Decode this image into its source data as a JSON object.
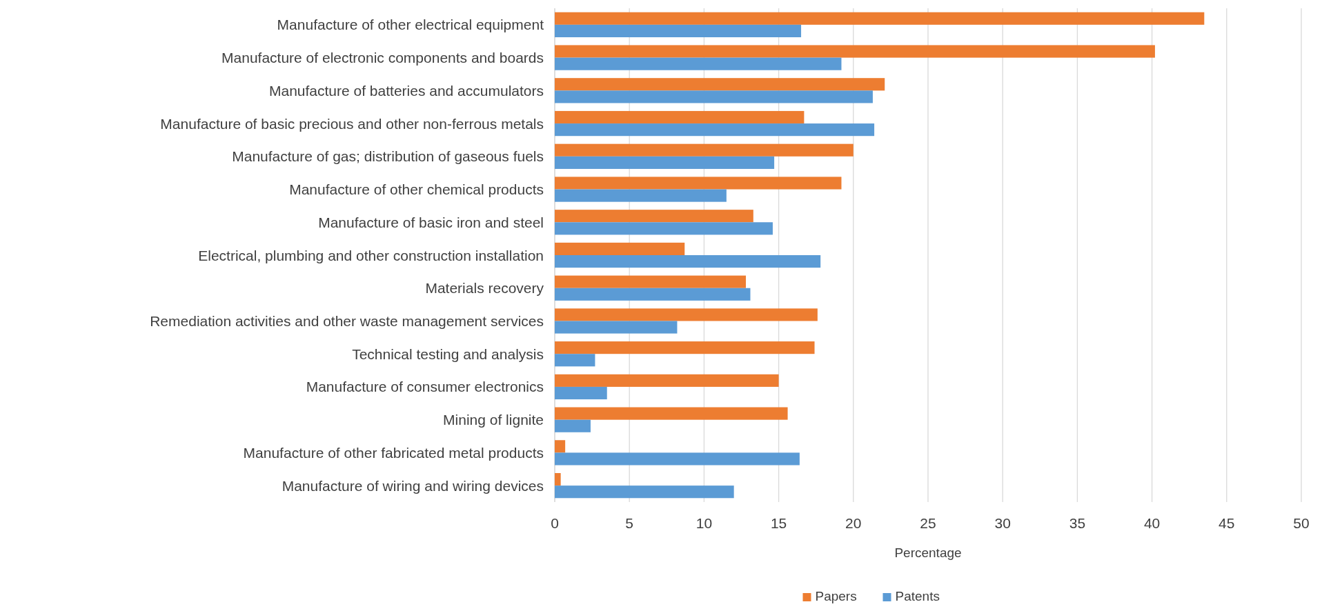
{
  "chart_data": {
    "type": "bar",
    "orientation": "horizontal",
    "xlabel": "Percentage",
    "categories": [
      "Manufacture of other electrical equipment",
      "Manufacture of electronic components and boards",
      "Manufacture of batteries and accumulators",
      "Manufacture of basic precious and other non-ferrous metals",
      "Manufacture of gas; distribution of gaseous fuels",
      "Manufacture of other chemical products",
      "Manufacture of basic iron and steel",
      "Electrical, plumbing and other construction installation",
      "Materials recovery",
      "Remediation activities and other waste management services",
      "Technical testing and analysis",
      "Manufacture of consumer electronics",
      "Mining of lignite",
      "Manufacture of other fabricated metal products",
      "Manufacture of wiring and wiring devices"
    ],
    "series": [
      {
        "name": "Papers",
        "color": "#ed7d31",
        "values": [
          43.5,
          40.2,
          22.1,
          16.7,
          20.0,
          19.2,
          13.3,
          8.7,
          12.8,
          17.6,
          17.4,
          15.0,
          15.6,
          0.7,
          0.4
        ]
      },
      {
        "name": "Patents",
        "color": "#5b9bd5",
        "values": [
          16.5,
          19.2,
          21.3,
          21.4,
          14.7,
          11.5,
          14.6,
          17.8,
          13.1,
          8.2,
          2.7,
          3.5,
          2.4,
          16.4,
          12.0
        ]
      }
    ],
    "xlim": [
      0,
      50
    ],
    "xticks": [
      0,
      5,
      10,
      15,
      20,
      25,
      30,
      35,
      40,
      45,
      50
    ],
    "grid": "x",
    "legend": "bottom"
  }
}
